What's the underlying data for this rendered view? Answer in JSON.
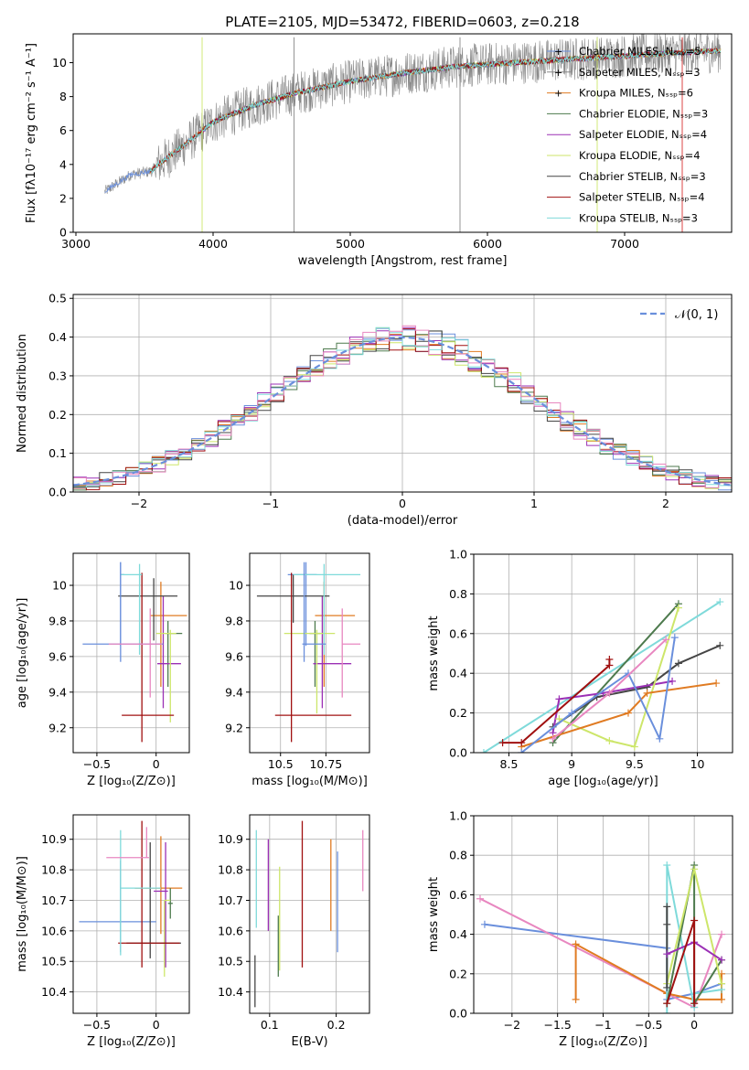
{
  "title": "PLATE=2105, MJD=53472, FIBERID=0603, z=0.218",
  "colors": {
    "blue": "#6a8fdc",
    "orange": "#e07b22",
    "darkgreen": "#4d7a4d",
    "purple": "#9b30b5",
    "yellowgreen": "#cde66a",
    "darkgray": "#454545",
    "darkred": "#a01010",
    "cyan": "#7fdada",
    "pink": "#e887c0",
    "gray": "#888888",
    "red": "#d83030"
  },
  "chart_data": [
    {
      "id": "spectrum",
      "type": "line",
      "xlabel": "wavelength [Angstrom, rest frame]",
      "ylabel": "Flux [fλ10⁻¹⁷ erg cm⁻² s⁻¹ A⁻¹]",
      "xlim": [
        2980,
        7780
      ],
      "ylim": [
        0,
        11.7
      ],
      "xticks": [
        3000,
        4000,
        5000,
        6000,
        7000
      ],
      "yticks": [
        0,
        2,
        4,
        6,
        8,
        10
      ],
      "grid": false,
      "legend_position": "top-right",
      "legend": [
        "Chabrier MILES, Nₛₛₚ=5",
        "Salpeter MILES, Nₛₛₚ=3",
        "Kroupa MILES, Nₛₛₚ=6",
        "Chabrier ELODIE, Nₛₛₚ=3",
        "Salpeter ELODIE, Nₛₛₚ=4",
        "Kroupa ELODIE, Nₛₛₚ=4",
        "Chabrier STELIB, Nₛₛₚ=3",
        "Salpeter STELIB, Nₛₛₚ=4",
        "Kroupa STELIB, Nₛₛₚ=3"
      ],
      "continuum": {
        "x": [
          3210,
          3400,
          3550,
          3600,
          3800,
          4000,
          4300,
          4600,
          5000,
          5400,
          5800,
          6200,
          6600,
          7000,
          7400,
          7700
        ],
        "y": [
          2.4,
          3.4,
          3.6,
          4.0,
          5.2,
          6.5,
          7.5,
          8.2,
          8.9,
          9.4,
          9.8,
          10.0,
          10.2,
          10.4,
          10.6,
          10.7
        ]
      }
    },
    {
      "id": "residuals",
      "type": "histogram",
      "xlabel": "(data-model)/error",
      "ylabel": "Normed distribution",
      "xlim": [
        -2.5,
        2.5
      ],
      "ylim": [
        0,
        0.51
      ],
      "xticks": [
        -2,
        -1,
        0,
        1,
        2
      ],
      "yticks": [
        0.0,
        0.1,
        0.2,
        0.3,
        0.4,
        0.5
      ],
      "grid": true,
      "legend_position": "top-right",
      "legend": [
        "𝒩(0, 1)"
      ],
      "bin_width": 0.1
    },
    {
      "id": "age-vs-Z",
      "type": "scatter",
      "xlabel": "Z [log₁₀(Z/Z⊙)]",
      "ylabel": "age  [log₁₀(age/yr)]",
      "xlim": [
        -0.7,
        0.28
      ],
      "ylim": [
        9.06,
        10.18
      ],
      "xticks": [
        -0.5,
        0.0
      ],
      "yticks": [
        9.2,
        9.4,
        9.6,
        9.8,
        10.0
      ],
      "grid": true,
      "points": [
        {
          "x": -0.3,
          "y": 10.06,
          "ex": [
            0.0,
            0.03
          ],
          "ey": [
            0.4,
            0.07
          ],
          "c": "blue"
        },
        {
          "x": 0.04,
          "y": 9.83,
          "ex": [
            0.09,
            0.22
          ],
          "ey": [
            0.4,
            0.19
          ],
          "c": "orange"
        },
        {
          "x": 0.1,
          "y": 9.73,
          "ex": [
            0.02,
            0.12
          ],
          "ey": [
            0.3,
            0.07
          ],
          "c": "darkgreen"
        },
        {
          "x": 0.06,
          "y": 9.56,
          "ex": [
            0.05,
            0.15
          ],
          "ey": [
            0.25,
            0.38
          ],
          "c": "purple"
        },
        {
          "x": 0.12,
          "y": 9.73,
          "ex": [
            0.12,
            0.05
          ],
          "ey": [
            0.5,
            0.02
          ],
          "c": "yellowgreen"
        },
        {
          "x": -0.02,
          "y": 9.94,
          "ex": [
            0.3,
            0.2
          ],
          "ey": [
            0.25,
            0.1
          ],
          "c": "darkgray"
        },
        {
          "x": -0.12,
          "y": 9.27,
          "ex": [
            0.17,
            0.27
          ],
          "ey": [
            0.15,
            0.8
          ],
          "c": "darkred"
        },
        {
          "x": -0.14,
          "y": 10.06,
          "ex": [
            0.16,
            0.02
          ],
          "ey": [
            0.45,
            0.06
          ],
          "c": "cyan"
        },
        {
          "x": -0.3,
          "y": 9.67,
          "ex": [
            0.32,
            0.36
          ],
          "ey": [
            0.1,
            0.46
          ],
          "c": "blue"
        },
        {
          "x": -0.05,
          "y": 9.67,
          "ex": [
            0.35,
            0.1
          ],
          "ey": [
            0.3,
            0.2
          ],
          "c": "pink"
        }
      ]
    },
    {
      "id": "age-vs-mass",
      "type": "scatter",
      "xlabel": "mass [log₁₀(M/M⊙)]",
      "ylabel": "",
      "xlim": [
        10.33,
        10.99
      ],
      "ylim": [
        9.06,
        10.18
      ],
      "xticks": [
        10.5,
        10.75
      ],
      "yticks": [
        9.2,
        9.4,
        9.6,
        9.8,
        10.0
      ],
      "grid": true,
      "points": [
        {
          "x": 10.64,
          "y": 10.06,
          "ex": [
            0.1,
            0.06
          ],
          "ey": [
            0.4,
            0.07
          ],
          "c": "blue"
        },
        {
          "x": 10.74,
          "y": 9.83,
          "ex": [
            0.05,
            0.17
          ],
          "ey": [
            0.4,
            0.19
          ],
          "c": "orange"
        },
        {
          "x": 10.69,
          "y": 9.73,
          "ex": [
            0.03,
            0.03
          ],
          "ey": [
            0.3,
            0.07
          ],
          "c": "darkgreen"
        },
        {
          "x": 10.73,
          "y": 9.56,
          "ex": [
            0.05,
            0.16
          ],
          "ey": [
            0.25,
            0.38
          ],
          "c": "purple"
        },
        {
          "x": 10.7,
          "y": 9.73,
          "ex": [
            0.18,
            0.1
          ],
          "ey": [
            0.45,
            0.02
          ],
          "c": "yellowgreen"
        },
        {
          "x": 10.57,
          "y": 9.94,
          "ex": [
            0.2,
            0.2
          ],
          "ey": [
            0.15,
            0.12
          ],
          "c": "darkgray"
        },
        {
          "x": 10.56,
          "y": 9.27,
          "ex": [
            0.09,
            0.33
          ],
          "ey": [
            0.15,
            0.8
          ],
          "c": "darkred"
        },
        {
          "x": 10.74,
          "y": 10.06,
          "ex": [
            0.17,
            0.2
          ],
          "ey": [
            0.45,
            0.06
          ],
          "c": "cyan"
        },
        {
          "x": 10.63,
          "y": 9.67,
          "ex": [
            0.01,
            0.12
          ],
          "ey": [
            0.1,
            0.46
          ],
          "c": "blue"
        },
        {
          "x": 10.84,
          "y": 9.67,
          "ex": [
            0.0,
            0.1
          ],
          "ey": [
            0.3,
            0.2
          ],
          "c": "pink"
        }
      ]
    },
    {
      "id": "weight-vs-age",
      "type": "line",
      "xlabel": "age  [log₁₀(age/yr)]",
      "ylabel": "mass weight",
      "xlim": [
        8.22,
        10.28
      ],
      "ylim": [
        0,
        1
      ],
      "xticks": [
        8.5,
        9.0,
        9.5,
        10.0
      ],
      "yticks": [
        0.0,
        0.2,
        0.4,
        0.6,
        0.8,
        1.0
      ],
      "grid": true,
      "series": [
        {
          "c": "cyan",
          "x": [
            8.3,
            10.18
          ],
          "y": [
            0.0,
            0.76
          ]
        },
        {
          "c": "darkgreen",
          "x": [
            8.85,
            9.85
          ],
          "y": [
            0.05,
            0.75
          ]
        },
        {
          "c": "darkgray",
          "x": [
            8.85,
            9.2,
            9.6,
            9.85,
            10.18
          ],
          "y": [
            0.13,
            0.28,
            0.33,
            0.45,
            0.54
          ]
        },
        {
          "c": "purple",
          "x": [
            8.85,
            8.9,
            9.25,
            9.8
          ],
          "y": [
            0.1,
            0.27,
            0.3,
            0.36
          ]
        },
        {
          "c": "yellowgreen",
          "x": [
            8.9,
            9.3,
            9.5,
            9.85
          ],
          "y": [
            0.17,
            0.06,
            0.03,
            0.73
          ]
        },
        {
          "c": "orange",
          "x": [
            8.6,
            9.45,
            9.6,
            10.15
          ],
          "y": [
            0.03,
            0.2,
            0.3,
            0.35
          ]
        },
        {
          "c": "blue",
          "x": [
            8.6,
            9.0,
            9.45,
            9.7,
            9.82
          ],
          "y": [
            0.0,
            0.2,
            0.4,
            0.07,
            0.58
          ]
        },
        {
          "c": "pink",
          "x": [
            8.85,
            9.3,
            9.75
          ],
          "y": [
            0.07,
            0.3,
            0.57
          ]
        },
        {
          "c": "darkred",
          "x": [
            8.45,
            8.6,
            9.3,
            9.3
          ],
          "y": [
            0.05,
            0.05,
            0.44,
            0.47
          ]
        }
      ]
    },
    {
      "id": "mass-vs-Z",
      "type": "scatter",
      "xlabel": "Z [log₁₀(Z/Z⊙)]",
      "ylabel": "mass [log₁₀(M/M⊙)]",
      "xlim": [
        -0.7,
        0.28
      ],
      "ylim": [
        10.33,
        10.98
      ],
      "xticks": [
        -0.5,
        0.0
      ],
      "yticks": [
        10.4,
        10.5,
        10.6,
        10.7,
        10.8,
        10.9
      ],
      "grid": true,
      "points": [
        {
          "x": -0.3,
          "y": 10.63,
          "ex": [
            0.35,
            0.3
          ],
          "ey": [
            0.1,
            0.2
          ],
          "c": "blue"
        },
        {
          "x": 0.04,
          "y": 10.74,
          "ex": [
            0.22,
            0.18
          ],
          "ey": [
            0.15,
            0.17
          ],
          "c": "orange"
        },
        {
          "x": 0.12,
          "y": 10.69,
          "ex": [
            0.02,
            0.02
          ],
          "ey": [
            0.05,
            0.05
          ],
          "c": "darkgreen"
        },
        {
          "x": 0.08,
          "y": 10.73,
          "ex": [
            0.1,
            0.02
          ],
          "ey": [
            0.25,
            0.16
          ],
          "c": "purple"
        },
        {
          "x": 0.07,
          "y": 10.7,
          "ex": [
            0.0,
            0.05
          ],
          "ey": [
            0.25,
            0.0
          ],
          "c": "yellowgreen"
        },
        {
          "x": -0.05,
          "y": 10.56,
          "ex": [
            0.2,
            0.26
          ],
          "ey": [
            0.05,
            0.33
          ],
          "c": "darkgray"
        },
        {
          "x": -0.12,
          "y": 10.56,
          "ex": [
            0.2,
            0.32
          ],
          "ey": [
            0.08,
            0.4
          ],
          "c": "darkred"
        },
        {
          "x": -0.3,
          "y": 10.74,
          "ex": [
            0.0,
            0.34
          ],
          "ey": [
            0.22,
            0.19
          ],
          "c": "cyan"
        },
        {
          "x": -0.08,
          "y": 10.84,
          "ex": [
            0.34,
            0.02
          ],
          "ey": [
            0.0,
            0.1
          ],
          "c": "pink"
        }
      ]
    },
    {
      "id": "mass-vs-EBV",
      "type": "scatter",
      "xlabel": "E(B-V)",
      "ylabel": "",
      "xlim": [
        0.07,
        0.25
      ],
      "ylim": [
        10.33,
        10.98
      ],
      "xticks": [
        0.1,
        0.2
      ],
      "yticks": [
        10.4,
        10.5,
        10.6,
        10.7,
        10.8,
        10.9
      ],
      "grid": true,
      "points": [
        {
          "x": 0.078,
          "y": 10.43,
          "ey": [
            0.08,
            0.09
          ],
          "c": "darkgray"
        },
        {
          "x": 0.08,
          "y": 10.73,
          "ey": [
            0.12,
            0.2
          ],
          "c": "cyan"
        },
        {
          "x": 0.098,
          "y": 10.75,
          "ey": [
            0.15,
            0.15
          ],
          "c": "purple"
        },
        {
          "x": 0.113,
          "y": 10.55,
          "ey": [
            0.1,
            0.1
          ],
          "c": "darkgreen"
        },
        {
          "x": 0.115,
          "y": 10.64,
          "ey": [
            0.17,
            0.17
          ],
          "c": "yellowgreen"
        },
        {
          "x": 0.149,
          "y": 10.72,
          "ey": [
            0.24,
            0.24
          ],
          "c": "darkred"
        },
        {
          "x": 0.192,
          "y": 10.75,
          "ey": [
            0.15,
            0.15
          ],
          "c": "orange"
        },
        {
          "x": 0.202,
          "y": 10.69,
          "ey": [
            0.16,
            0.17
          ],
          "c": "blue"
        },
        {
          "x": 0.24,
          "y": 10.83,
          "ey": [
            0.1,
            0.1
          ],
          "c": "pink"
        }
      ]
    },
    {
      "id": "weight-vs-Z",
      "type": "line",
      "xlabel": "Z [log₁₀(Z/Z⊙)]",
      "ylabel": "mass weight",
      "xlim": [
        -2.42,
        0.42
      ],
      "ylim": [
        0,
        1
      ],
      "xticks": [
        -2.0,
        -1.5,
        -1.0,
        -0.5,
        0.0
      ],
      "yticks": [
        0.0,
        0.2,
        0.4,
        0.6,
        0.8,
        1.0
      ],
      "grid": true,
      "series": [
        {
          "c": "blue",
          "x": [
            -2.3,
            -0.3,
            -0.3,
            0.0,
            0.3
          ],
          "y": [
            0.45,
            0.33,
            0.07,
            0.1,
            0.15
          ]
        },
        {
          "c": "pink",
          "x": [
            -2.35,
            0.0,
            0.3
          ],
          "y": [
            0.58,
            0.03,
            0.4
          ]
        },
        {
          "c": "orange",
          "x": [
            -1.3,
            -1.3,
            -0.3,
            0.0,
            0.3,
            0.3
          ],
          "y": [
            0.07,
            0.35,
            0.1,
            0.07,
            0.07,
            0.2
          ]
        },
        {
          "c": "cyan",
          "x": [
            -0.3,
            -0.3,
            0.0,
            0.0,
            0.3
          ],
          "y": [
            0.0,
            0.75,
            0.03,
            0.1,
            0.12
          ]
        },
        {
          "c": "darkgreen",
          "x": [
            -0.3,
            0.0,
            0.0,
            0.3
          ],
          "y": [
            0.05,
            0.75,
            0.05,
            0.27
          ]
        },
        {
          "c": "yellowgreen",
          "x": [
            -0.3,
            0.0,
            0.3
          ],
          "y": [
            0.15,
            0.73,
            0.15
          ]
        },
        {
          "c": "darkgray",
          "x": [
            -0.3,
            -0.3,
            -0.3
          ],
          "y": [
            0.54,
            0.45,
            0.13
          ]
        },
        {
          "c": "purple",
          "x": [
            -0.3,
            0.0,
            0.3
          ],
          "y": [
            0.3,
            0.36,
            0.27
          ]
        },
        {
          "c": "darkred",
          "x": [
            -0.3,
            0.0,
            0.0
          ],
          "y": [
            0.05,
            0.47,
            0.05
          ]
        }
      ]
    }
  ]
}
